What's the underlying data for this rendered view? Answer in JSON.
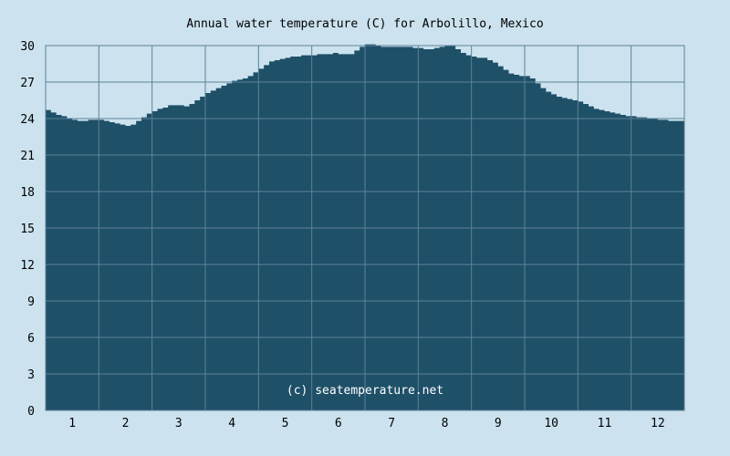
{
  "chart_data": {
    "type": "area",
    "title": "Annual water temperature (C) for Arbolillo, Mexico",
    "xlabel": "",
    "ylabel": "",
    "x_tick_labels": [
      "1",
      "2",
      "3",
      "4",
      "5",
      "6",
      "7",
      "8",
      "9",
      "10",
      "11",
      "12"
    ],
    "y_ticks": [
      0,
      3,
      6,
      9,
      12,
      15,
      18,
      21,
      24,
      27,
      30
    ],
    "ylim": [
      0,
      30
    ],
    "grid": true,
    "fill_color": "#1e5068",
    "grid_color": "#5e8297",
    "annotation": "(c) seatemperature.net",
    "series": [
      {
        "x": [
          0,
          0.1,
          0.2,
          0.3,
          0.4,
          0.5,
          0.6,
          0.7,
          0.8,
          0.9,
          1.0,
          1.1,
          1.2,
          1.3,
          1.4,
          1.5,
          1.6,
          1.7,
          1.8,
          1.9,
          2.0,
          2.1,
          2.2,
          2.3,
          2.4,
          2.5,
          2.6,
          2.7,
          2.8,
          2.9,
          3.0,
          3.1,
          3.2,
          3.3,
          3.4,
          3.5,
          3.6,
          3.7,
          3.8,
          3.9,
          4.0,
          4.1,
          4.2,
          4.3,
          4.4,
          4.5,
          4.6,
          4.7,
          4.8,
          4.9,
          5.0,
          5.1,
          5.2,
          5.3,
          5.4,
          5.5,
          5.6,
          5.7,
          5.8,
          5.9,
          6.0,
          6.1,
          6.2,
          6.3,
          6.4,
          6.5,
          6.6,
          6.7,
          6.8,
          6.9,
          7.0,
          7.1,
          7.2,
          7.3,
          7.4,
          7.5,
          7.6,
          7.7,
          7.8,
          7.9,
          8.0,
          8.1,
          8.2,
          8.3,
          8.4,
          8.5,
          8.6,
          8.7,
          8.8,
          8.9,
          9.0,
          9.1,
          9.2,
          9.3,
          9.4,
          9.5,
          9.6,
          9.7,
          9.8,
          9.9,
          10.0,
          10.1,
          10.2,
          10.3,
          10.4,
          10.5,
          10.6,
          10.7,
          10.8,
          10.9,
          11.0,
          11.1,
          11.2,
          11.3,
          11.4,
          11.5,
          11.6,
          11.7,
          11.8,
          11.9,
          12.0
        ],
        "values": [
          24.7,
          24.5,
          24.3,
          24.2,
          24.0,
          23.9,
          23.8,
          23.8,
          23.9,
          23.9,
          23.9,
          23.8,
          23.7,
          23.6,
          23.5,
          23.4,
          23.5,
          23.8,
          24.1,
          24.4,
          24.6,
          24.8,
          24.9,
          25.1,
          25.1,
          25.1,
          25.0,
          25.2,
          25.5,
          25.8,
          26.1,
          26.3,
          26.5,
          26.7,
          26.9,
          27.1,
          27.2,
          27.3,
          27.5,
          27.8,
          28.1,
          28.4,
          28.7,
          28.8,
          28.9,
          29.0,
          29.1,
          29.1,
          29.2,
          29.2,
          29.2,
          29.3,
          29.3,
          29.3,
          29.4,
          29.3,
          29.3,
          29.3,
          29.6,
          29.9,
          30.1,
          30.1,
          30.0,
          29.9,
          29.9,
          29.9,
          29.9,
          29.9,
          29.9,
          29.8,
          29.8,
          29.7,
          29.7,
          29.8,
          29.9,
          30.0,
          30.0,
          29.7,
          29.4,
          29.2,
          29.1,
          29.0,
          29.0,
          28.8,
          28.6,
          28.3,
          28.0,
          27.7,
          27.6,
          27.5,
          27.5,
          27.3,
          26.9,
          26.5,
          26.2,
          26.0,
          25.8,
          25.7,
          25.6,
          25.5,
          25.4,
          25.2,
          25.0,
          24.8,
          24.7,
          24.6,
          24.5,
          24.4,
          24.3,
          24.2,
          24.2,
          24.1,
          24.1,
          24.0,
          24.0,
          23.9,
          23.9,
          23.8,
          23.8,
          23.8,
          24.7
        ]
      }
    ]
  }
}
